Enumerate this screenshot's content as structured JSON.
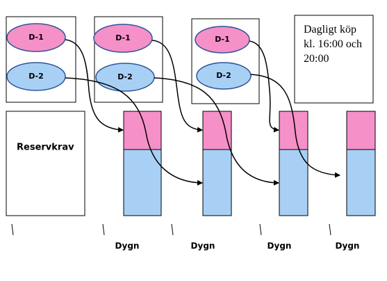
{
  "groups": [
    {
      "d1": "D-1",
      "d2": "D-2"
    },
    {
      "d1": "D-1",
      "d2": "D-2"
    },
    {
      "d1": "D-1",
      "d2": "D-2"
    }
  ],
  "reserve": "Reservkrav",
  "note": [
    "Dagligt köp",
    "kl. 16:00 och",
    "20:00"
  ],
  "days": [
    "Dygn",
    "Dygn",
    "Dygn",
    "Dygn"
  ]
}
